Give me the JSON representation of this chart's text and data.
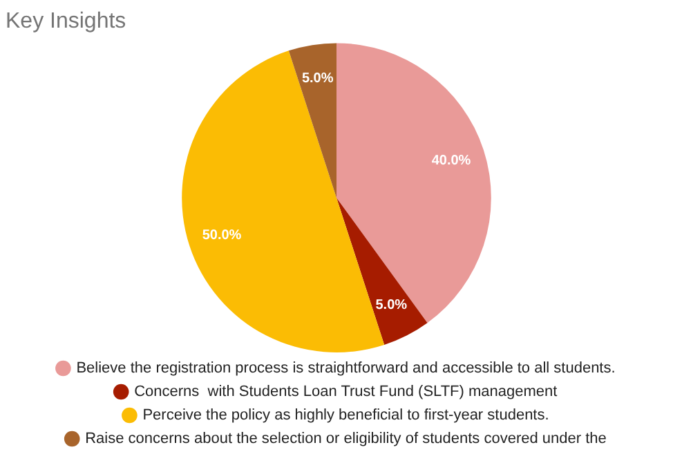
{
  "chart_data": {
    "type": "pie",
    "title": "Key Insights",
    "categories": [
      "Believe the registration process is straightforward and accessible to all students.",
      "Concerns  with Students Loan Trust Fund (SLTF) management",
      "Perceive the policy as highly beneficial to first-year students.",
      "Raise concerns about the selection or eligibility of students covered under the"
    ],
    "values": [
      40,
      5,
      50,
      5
    ],
    "colors": [
      "#e99a98",
      "#a61c00",
      "#fbbc04",
      "#a8642b"
    ],
    "value_labels": [
      "40.0%",
      "5.0%",
      "50.0%",
      "5.0%"
    ],
    "legend": "bottom"
  }
}
